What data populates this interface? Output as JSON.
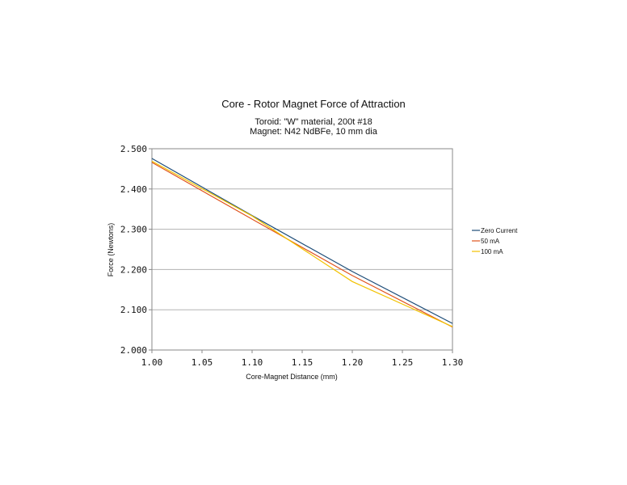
{
  "chart_data": {
    "type": "line",
    "title": "Core - Rotor Magnet Force of Attraction",
    "subtitle_lines": [
      "Toroid: \"W\" material, 200t #18",
      "Magnet: N42 NdBFe, 10 mm dia"
    ],
    "xlabel": "Core-Magnet Distance (mm)",
    "ylabel": "Force (Newtons)",
    "xlim": [
      1.0,
      1.3
    ],
    "ylim": [
      2.0,
      2.5
    ],
    "x_ticks": [
      "1.00",
      "1.05",
      "1.10",
      "1.15",
      "1.20",
      "1.25",
      "1.30"
    ],
    "y_ticks": [
      "2.500",
      "2.400",
      "2.300",
      "2.200",
      "2.100",
      "2.000"
    ],
    "grid": "horizontal",
    "legend_position": "right",
    "series": [
      {
        "name": "Zero Current",
        "color": "#1f4e79",
        "x": [
          1.0,
          1.1,
          1.2,
          1.3
        ],
        "y": [
          2.476,
          2.334,
          2.195,
          2.066
        ]
      },
      {
        "name": "50 mA",
        "color": "#e0531d",
        "x": [
          1.0,
          1.1,
          1.2,
          1.3
        ],
        "y": [
          2.466,
          2.325,
          2.185,
          2.057
        ]
      },
      {
        "name": "100 mA",
        "color": "#f2c200",
        "x": [
          1.0,
          1.1,
          1.2,
          1.3
        ],
        "y": [
          2.469,
          2.333,
          2.17,
          2.058
        ]
      }
    ]
  }
}
